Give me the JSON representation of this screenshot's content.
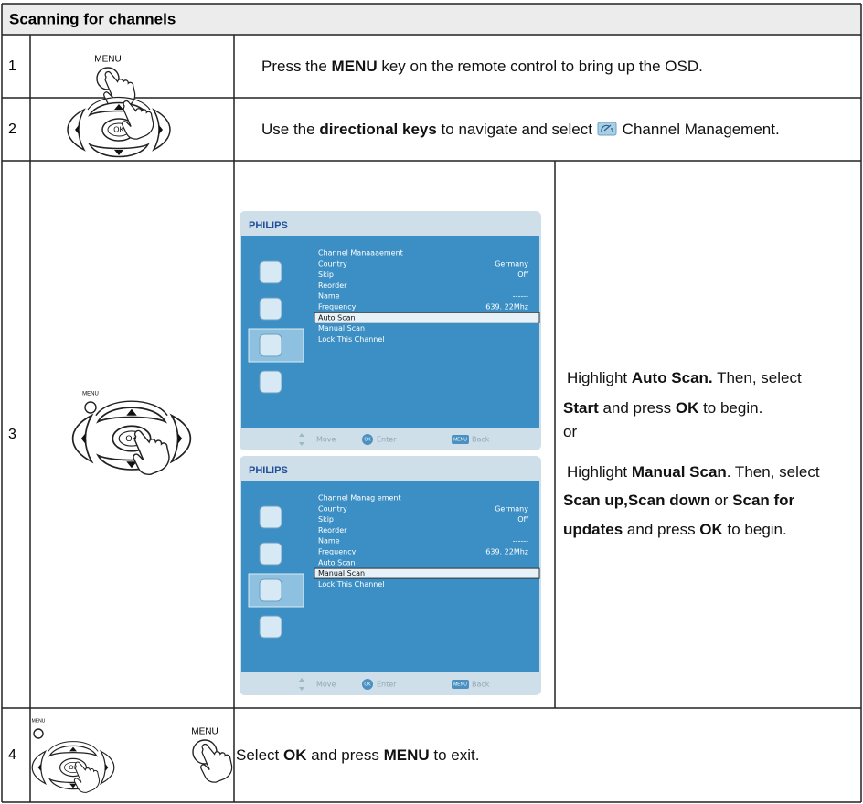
{
  "header": {
    "title": "Scanning for channels"
  },
  "steps": [
    {
      "number": "1",
      "icon_labels": [
        "MENU"
      ],
      "text": [
        {
          "text": "Press the "
        },
        {
          "text": "MENU",
          "bold": true
        },
        {
          "text": " key on the remote control to bring up the OSD."
        }
      ]
    },
    {
      "number": "2",
      "icon_labels": [
        "OK"
      ],
      "text": [
        {
          "text": "Use the "
        },
        {
          "text": "directional keys",
          "bold": true
        },
        {
          "text": " to navigate and select "
        },
        {
          "text": "Channel Management."
        }
      ]
    },
    {
      "number": "3",
      "icon_labels": [
        "MENU",
        "OK"
      ],
      "screens": [
        {
          "brand": "PHILIPS",
          "items": [
            {
              "label": "Channel Manaaaement"
            },
            {
              "label": "Country",
              "value": "Germany"
            },
            {
              "label": "Skip",
              "value": "Off"
            },
            {
              "label": "Reorder"
            },
            {
              "label": "Name",
              "value": "------"
            },
            {
              "label": "Frequency",
              "value": "639. 22Mhz"
            },
            {
              "label": "Auto Scan",
              "selected": true
            },
            {
              "label": "Manual Scan"
            },
            {
              "label": "Lock This Channel"
            }
          ],
          "footer": [
            {
              "label": "Move"
            },
            {
              "key": "OK",
              "label": "Enter"
            },
            {
              "key": "MENU",
              "label": "Back"
            }
          ]
        },
        {
          "brand": "PHILIPS",
          "items": [
            {
              "label": "Channel Manag ement"
            },
            {
              "label": "Country",
              "value": "Germany"
            },
            {
              "label": "Skip",
              "value": "Off"
            },
            {
              "label": "Reorder"
            },
            {
              "label": "Name",
              "value": "------"
            },
            {
              "label": "Frequency",
              "value": "639. 22Mhz"
            },
            {
              "label": "Auto Scan"
            },
            {
              "label": "Manual Scan",
              "selected": true
            },
            {
              "label": "Lock This Channel"
            }
          ],
          "footer": [
            {
              "label": "Move"
            },
            {
              "key": "OK",
              "label": "Enter"
            },
            {
              "key": "MENU",
              "label": "Back"
            }
          ]
        }
      ],
      "lines": [
        [
          {
            "text": "Highlight "
          },
          {
            "text": "Auto Scan.",
            "bold": true
          },
          {
            "text": " Then, select"
          }
        ],
        [
          {
            "text": "Start",
            "bold": true
          },
          {
            "text": " and press "
          },
          {
            "text": "OK",
            "bold": true
          },
          {
            "text": " to begin."
          }
        ],
        [
          {
            "text": "or"
          }
        ],
        [
          {
            "text": "Highlight "
          },
          {
            "text": "Manual Scan",
            "bold": true
          },
          {
            "text": ". Then, select"
          }
        ],
        [
          {
            "text": "Scan up,Scan down",
            "bold": true
          },
          {
            "text": " or "
          },
          {
            "text": "Scan for",
            "bold": true
          }
        ],
        [
          {
            "text": "updates",
            "bold": true
          },
          {
            "text": " and press "
          },
          {
            "text": "OK",
            "bold": true
          },
          {
            "text": " to begin."
          }
        ]
      ]
    },
    {
      "number": "4",
      "icon_labels": [
        "MENU",
        "OK",
        "MENU"
      ],
      "text": [
        {
          "text": "Select "
        },
        {
          "text": "OK",
          "bold": true
        },
        {
          "text": " and press "
        },
        {
          "text": "MENU",
          "bold": true
        },
        {
          "text": " to exit."
        }
      ]
    }
  ]
}
